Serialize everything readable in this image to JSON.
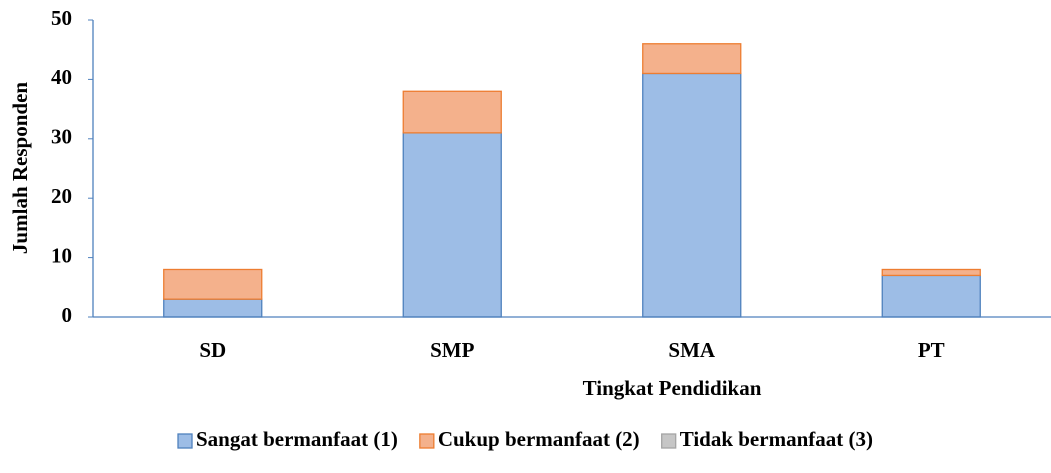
{
  "chart_data": {
    "type": "stacked_bar",
    "x_label": "Tingkat Pendidikan",
    "y_label": "Jumlah Responden",
    "categories": [
      "SD",
      "SMP",
      "SMA",
      "PT"
    ],
    "series": [
      {
        "name": "Sangat bermanfaat (1)",
        "color": "#9dbde6",
        "stroke": "#4f81bd",
        "values": [
          3,
          31,
          41,
          7
        ]
      },
      {
        "name": "Cukup bermanfaat (2)",
        "color": "#f4b18c",
        "stroke": "#ed7d31",
        "values": [
          5,
          7,
          5,
          1
        ]
      },
      {
        "name": "Tidak bermanfaat (3)",
        "color": "#c6c6c6",
        "stroke": "#a5a5a5",
        "values": [
          0,
          0,
          0,
          0
        ]
      }
    ],
    "ylim": [
      0,
      50
    ],
    "yticks": [
      0,
      10,
      20,
      30,
      40,
      50
    ],
    "grid": false,
    "legend": "bottom"
  }
}
